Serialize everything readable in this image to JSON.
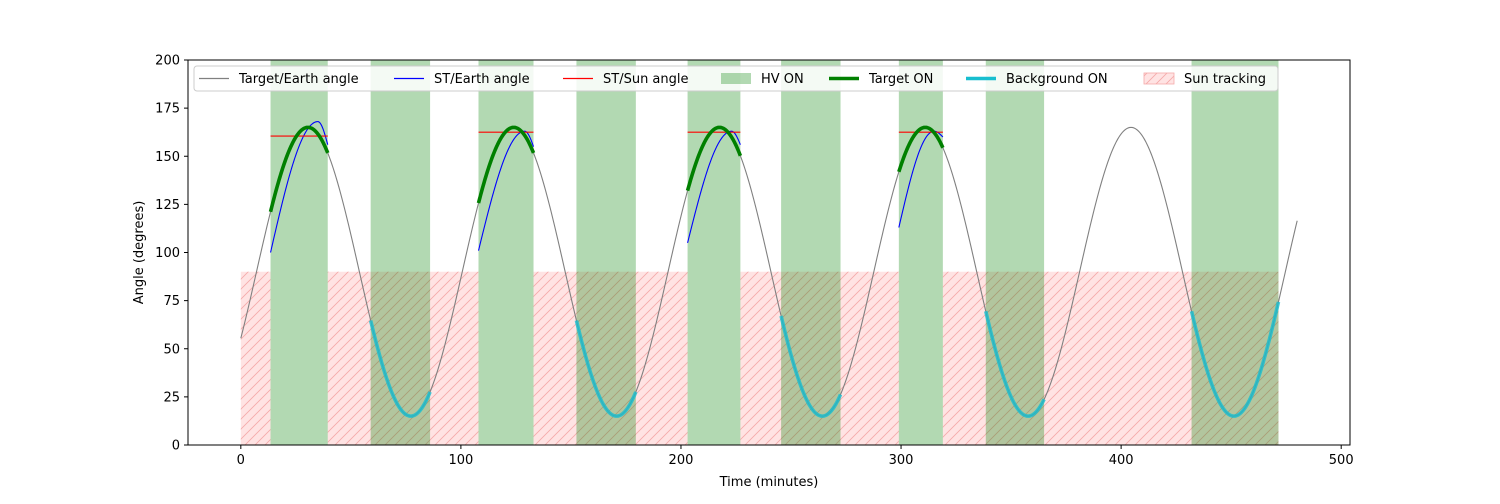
{
  "chart_data": {
    "type": "line",
    "title": "",
    "xlabel": "Time (minutes)",
    "ylabel": "Angle (degrees)",
    "xlim": [
      -24,
      504
    ],
    "ylim": [
      0,
      200
    ],
    "xticks": [
      0,
      100,
      200,
      300,
      400,
      500
    ],
    "yticks": [
      0,
      25,
      50,
      75,
      100,
      125,
      150,
      175,
      200
    ],
    "grid": false,
    "legend_position": "top",
    "target_earth_model": {
      "period": 93.5,
      "center": 90,
      "amplitude": 75,
      "peak_time": 30.5,
      "t_start": 0,
      "t_end": 480
    },
    "hv_on_intervals": [
      [
        13.5,
        39.5
      ],
      [
        59,
        86
      ],
      [
        108,
        133
      ],
      [
        152.5,
        179.5
      ],
      [
        203,
        227
      ],
      [
        245.5,
        272.5
      ],
      [
        299,
        319
      ],
      [
        338.5,
        365
      ],
      [
        432,
        471.5
      ]
    ],
    "target_on_intervals": [
      [
        13.5,
        39.5
      ],
      [
        108,
        133
      ],
      [
        203,
        227
      ],
      [
        299,
        319
      ]
    ],
    "background_on_intervals": [
      [
        59,
        86
      ],
      [
        152.5,
        179.5
      ],
      [
        245.5,
        272.5
      ],
      [
        338.5,
        365
      ],
      [
        432,
        471.5
      ]
    ],
    "sun_tracking_intervals": [
      [
        0,
        13.5
      ],
      [
        39.5,
        108
      ],
      [
        133,
        203
      ],
      [
        227,
        299
      ],
      [
        319,
        432
      ],
      [
        432,
        471.5
      ]
    ],
    "sun_tracking_level": 90,
    "st_earth_segments": [
      {
        "t_start": 13.5,
        "t_end": 39.5,
        "y_start": 100,
        "peak": 168,
        "peak_time": 35,
        "y_end": 156
      },
      {
        "t_start": 108,
        "t_end": 133,
        "y_start": 101,
        "peak": 163,
        "peak_time": 129,
        "y_end": 155
      },
      {
        "t_start": 203,
        "t_end": 227,
        "y_start": 105,
        "peak": 163,
        "peak_time": 223,
        "y_end": 156
      },
      {
        "t_start": 299,
        "t_end": 319,
        "y_start": 113,
        "peak": 163,
        "peak_time": 315,
        "y_end": 160
      }
    ],
    "st_sun_segments": [
      {
        "t_start": 13.5,
        "t_end": 39.5,
        "value": 160.5
      },
      {
        "t_start": 108,
        "t_end": 133,
        "value": 162.5
      },
      {
        "t_start": 203,
        "t_end": 227,
        "value": 162.5
      },
      {
        "t_start": 299,
        "t_end": 319,
        "value": 162.5
      }
    ],
    "series": [
      {
        "name": "Target/Earth angle",
        "color": "#808080",
        "style": "line"
      },
      {
        "name": "ST/Earth angle",
        "color": "#0000ff",
        "style": "line"
      },
      {
        "name": "ST/Sun angle",
        "color": "#ff0000",
        "style": "line"
      },
      {
        "name": "HV ON",
        "color": "#008000",
        "style": "patch"
      },
      {
        "name": "Target ON",
        "color": "#008000",
        "style": "thick-line"
      },
      {
        "name": "Background ON",
        "color": "#17becf",
        "style": "thick-line"
      },
      {
        "name": "Sun tracking",
        "color": "#ff9999",
        "style": "hatched-patch"
      }
    ]
  }
}
